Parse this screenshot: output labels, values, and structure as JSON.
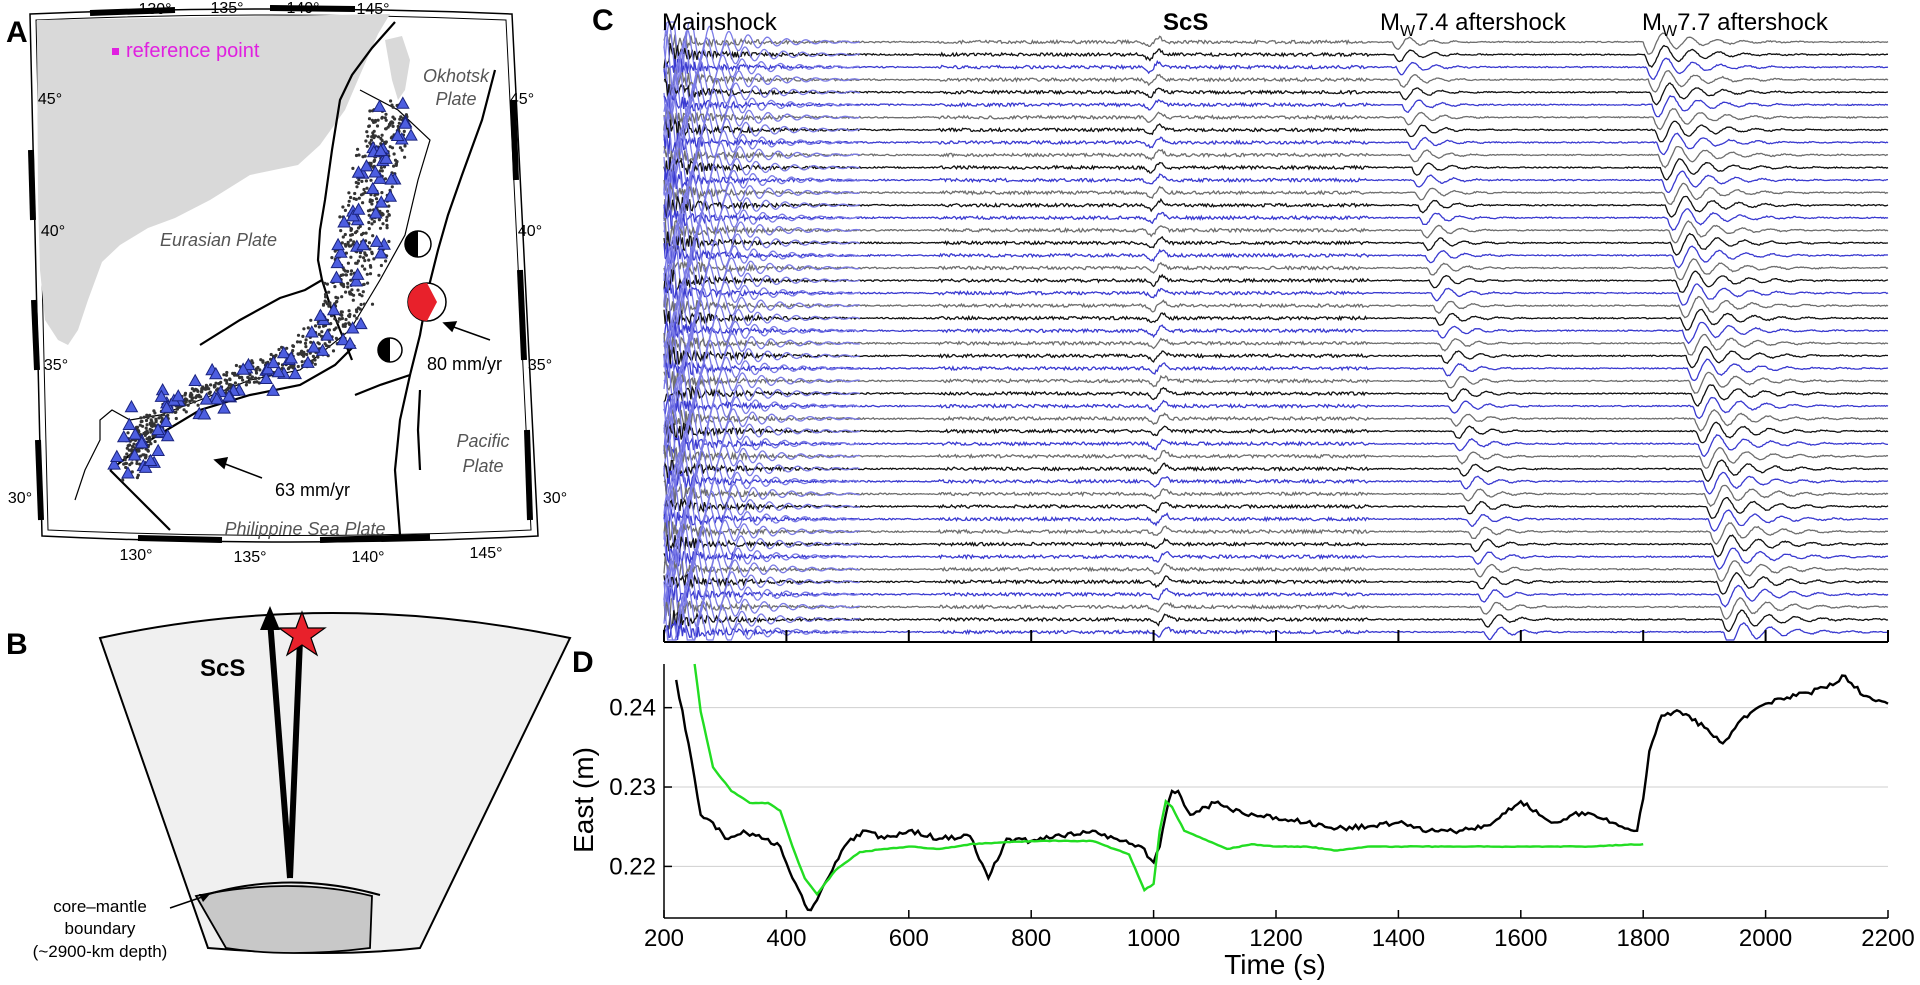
{
  "panels": {
    "a": {
      "letter": "A",
      "legend": "reference point",
      "lon_ticks": [
        "130°",
        "135°",
        "140°",
        "145°"
      ],
      "lat_ticks": [
        "30°",
        "35°",
        "40°",
        "45°"
      ],
      "labels": {
        "okhotsk": [
          "Okhotsk",
          "Plate"
        ],
        "eurasian": "Eurasian Plate",
        "pacific": [
          "Pacific",
          "Plate"
        ],
        "philippine": "Philippine Sea Plate",
        "rate_pacific": "80 mm/yr",
        "rate_philippine": "63 mm/yr"
      },
      "colors": {
        "land": "#d9d9d9",
        "station": "#4d5ee0",
        "station_edge": "#1a237e",
        "point": "#333333",
        "beachball_red": "#e8212b",
        "reference": "#e020e0"
      }
    },
    "b": {
      "letter": "B",
      "phase": "ScS",
      "cmb": [
        "core–mantle",
        "boundary",
        "(~2900-km depth)"
      ],
      "colors": {
        "mantle": "#f0f0f0",
        "core": "#c8c8c8",
        "star": "#e8212b"
      }
    },
    "c": {
      "letter": "C",
      "labels": {
        "mainshock": "Mainshock",
        "scs": "ScS",
        "aft1_prefix": "M",
        "aft1_sub": "W",
        "aft1_suffix": "7.4 aftershock",
        "aft2_prefix": "M",
        "aft2_sub": "W",
        "aft2_suffix": "7.7 aftershock"
      },
      "trace_count": 48,
      "colors": {
        "blue": "#3a3ad0",
        "light_blue": "#7b7be6",
        "grey": "#6e6e6e",
        "black": "#111111"
      }
    },
    "d": {
      "letter": "D",
      "ylabel": "East (m)",
      "xlabel": "Time (s)"
    }
  },
  "chart_data": {
    "type": "line",
    "title": "",
    "xlabel": "Time (s)",
    "ylabel": "East (m)",
    "xlim": [
      200,
      2200
    ],
    "ylim": [
      0.2135,
      0.2455
    ],
    "xticks": [
      200,
      400,
      600,
      800,
      1000,
      1200,
      1400,
      1600,
      1800,
      2000,
      2200
    ],
    "yticks": [
      0.22,
      0.23,
      0.24
    ],
    "ytick_labels": [
      "0.22",
      "0.23",
      "0.24"
    ],
    "grid": "horizontal",
    "series": [
      {
        "color": "#000000",
        "x": [
          220,
          240,
          260,
          280,
          300,
          330,
          360,
          390,
          410,
          430,
          440,
          460,
          480,
          500,
          530,
          560,
          600,
          650,
          700,
          730,
          760,
          800,
          850,
          900,
          950,
          980,
          1000,
          1010,
          1020,
          1030,
          1040,
          1060,
          1100,
          1150,
          1200,
          1250,
          1300,
          1350,
          1400,
          1450,
          1500,
          1550,
          1600,
          1650,
          1700,
          1750,
          1790,
          1800,
          1810,
          1830,
          1860,
          1900,
          1930,
          1960,
          2000,
          2050,
          2100,
          2130,
          2160,
          2200
        ],
        "y": [
          0.2435,
          0.2355,
          0.2265,
          0.2255,
          0.2235,
          0.2245,
          0.2235,
          0.2225,
          0.2185,
          0.2152,
          0.2145,
          0.2175,
          0.2205,
          0.223,
          0.2245,
          0.2235,
          0.2245,
          0.2235,
          0.2238,
          0.2185,
          0.2235,
          0.2232,
          0.2238,
          0.2245,
          0.2232,
          0.2225,
          0.2205,
          0.2225,
          0.2265,
          0.2295,
          0.2295,
          0.2265,
          0.228,
          0.2265,
          0.2262,
          0.2255,
          0.2248,
          0.225,
          0.2255,
          0.2245,
          0.2245,
          0.2252,
          0.2282,
          0.2255,
          0.2268,
          0.2255,
          0.2245,
          0.2285,
          0.2345,
          0.239,
          0.2395,
          0.2375,
          0.2355,
          0.2385,
          0.2405,
          0.2415,
          0.2425,
          0.244,
          0.2415,
          0.2405
        ]
      },
      {
        "color": "#22dd22",
        "x": [
          250,
          260,
          280,
          310,
          340,
          370,
          390,
          410,
          430,
          450,
          480,
          520,
          560,
          600,
          650,
          700,
          800,
          900,
          960,
          985,
          1000,
          1010,
          1020,
          1030,
          1050,
          1080,
          1120,
          1160,
          1200,
          1250,
          1300,
          1350,
          1400,
          1500,
          1600,
          1700,
          1800
        ],
        "y": [
          0.2455,
          0.2395,
          0.2325,
          0.2295,
          0.228,
          0.228,
          0.227,
          0.2225,
          0.2185,
          0.2165,
          0.2195,
          0.2218,
          0.2222,
          0.2225,
          0.2222,
          0.2228,
          0.2232,
          0.2232,
          0.2215,
          0.217,
          0.2178,
          0.2245,
          0.2282,
          0.2275,
          0.2245,
          0.2235,
          0.2222,
          0.2228,
          0.2225,
          0.2225,
          0.222,
          0.2225,
          0.2225,
          0.2225,
          0.2225,
          0.2225,
          0.2228
        ]
      }
    ]
  }
}
